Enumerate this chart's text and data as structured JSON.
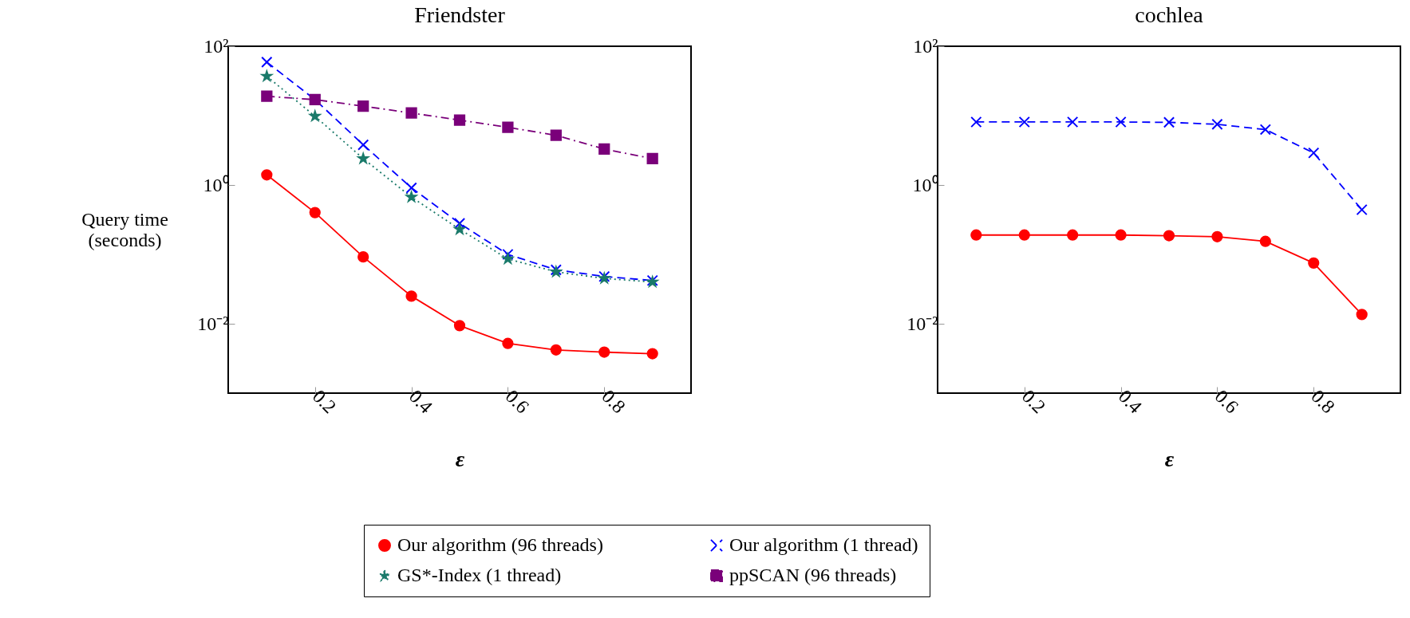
{
  "chart_data": [
    {
      "type": "line",
      "title": "Friendster",
      "xlabel": "ε",
      "ylabel": "Query time (seconds)",
      "log": true,
      "legend": "bottom",
      "grid": false,
      "x": [
        0.1,
        0.2,
        0.3,
        0.4,
        0.5,
        0.6,
        0.7,
        0.8,
        0.9
      ],
      "xlim": [
        0.02,
        0.98
      ],
      "xticks": [
        0.2,
        0.4,
        0.6,
        0.8
      ],
      "ylim": [
        0.001,
        100
      ],
      "yticks": [
        {
          "value": 100,
          "label": "10²"
        },
        {
          "value": 1,
          "label": "10⁰"
        },
        {
          "value": 0.01,
          "label": "10⁻²"
        }
      ],
      "series": [
        {
          "name": "Our algorithm (96 threads)",
          "color": "#ff0000",
          "marker": "circle",
          "line_style": "solid",
          "values": [
            1.4,
            0.4,
            0.092,
            0.025,
            0.0094,
            0.0052,
            0.0042,
            0.0039,
            0.0037
          ]
        },
        {
          "name": "Our algorithm (1 thread)",
          "color": "#0000ff",
          "marker": "cross",
          "line_style": "dashed",
          "values": [
            59,
            17,
            3.8,
            0.91,
            0.28,
            0.1,
            0.06,
            0.048,
            0.042
          ]
        },
        {
          "name": "GS*-Index (1 thread)",
          "color": "#1a7a6a",
          "marker": "star",
          "line_style": "dotted",
          "values": [
            37,
            9.8,
            2.4,
            0.67,
            0.23,
            0.086,
            0.056,
            0.045,
            0.04
          ]
        },
        {
          "name": "ppSCAN (96 threads)",
          "color": "#7a007a",
          "marker": "square",
          "line_style": "dashdot",
          "values": [
            19,
            17,
            13.7,
            10.9,
            8.6,
            6.8,
            5.2,
            3.3,
            2.4
          ]
        }
      ]
    },
    {
      "type": "line",
      "title": "cochlea",
      "xlabel": "ε",
      "log": true,
      "legend": "bottom",
      "grid": false,
      "x": [
        0.1,
        0.2,
        0.3,
        0.4,
        0.5,
        0.6,
        0.7,
        0.8,
        0.9
      ],
      "xlim": [
        0.02,
        0.98
      ],
      "xticks": [
        0.2,
        0.4,
        0.6,
        0.8
      ],
      "ylim": [
        0.001,
        100
      ],
      "yticks": [
        {
          "value": 100,
          "label": "10²"
        },
        {
          "value": 1,
          "label": "10⁰"
        },
        {
          "value": 0.01,
          "label": "10⁻²"
        }
      ],
      "series": [
        {
          "name": "Our algorithm (96 threads)",
          "color": "#ff0000",
          "marker": "circle",
          "line_style": "solid",
          "values": [
            0.19,
            0.19,
            0.19,
            0.19,
            0.186,
            0.18,
            0.154,
            0.075,
            0.0136
          ]
        },
        {
          "name": "Our algorithm (1 thread)",
          "color": "#0000ff",
          "marker": "cross",
          "line_style": "dashed",
          "values": [
            8.1,
            8.1,
            8.1,
            8.1,
            8.0,
            7.5,
            6.3,
            2.9,
            0.44
          ]
        }
      ]
    }
  ]
}
